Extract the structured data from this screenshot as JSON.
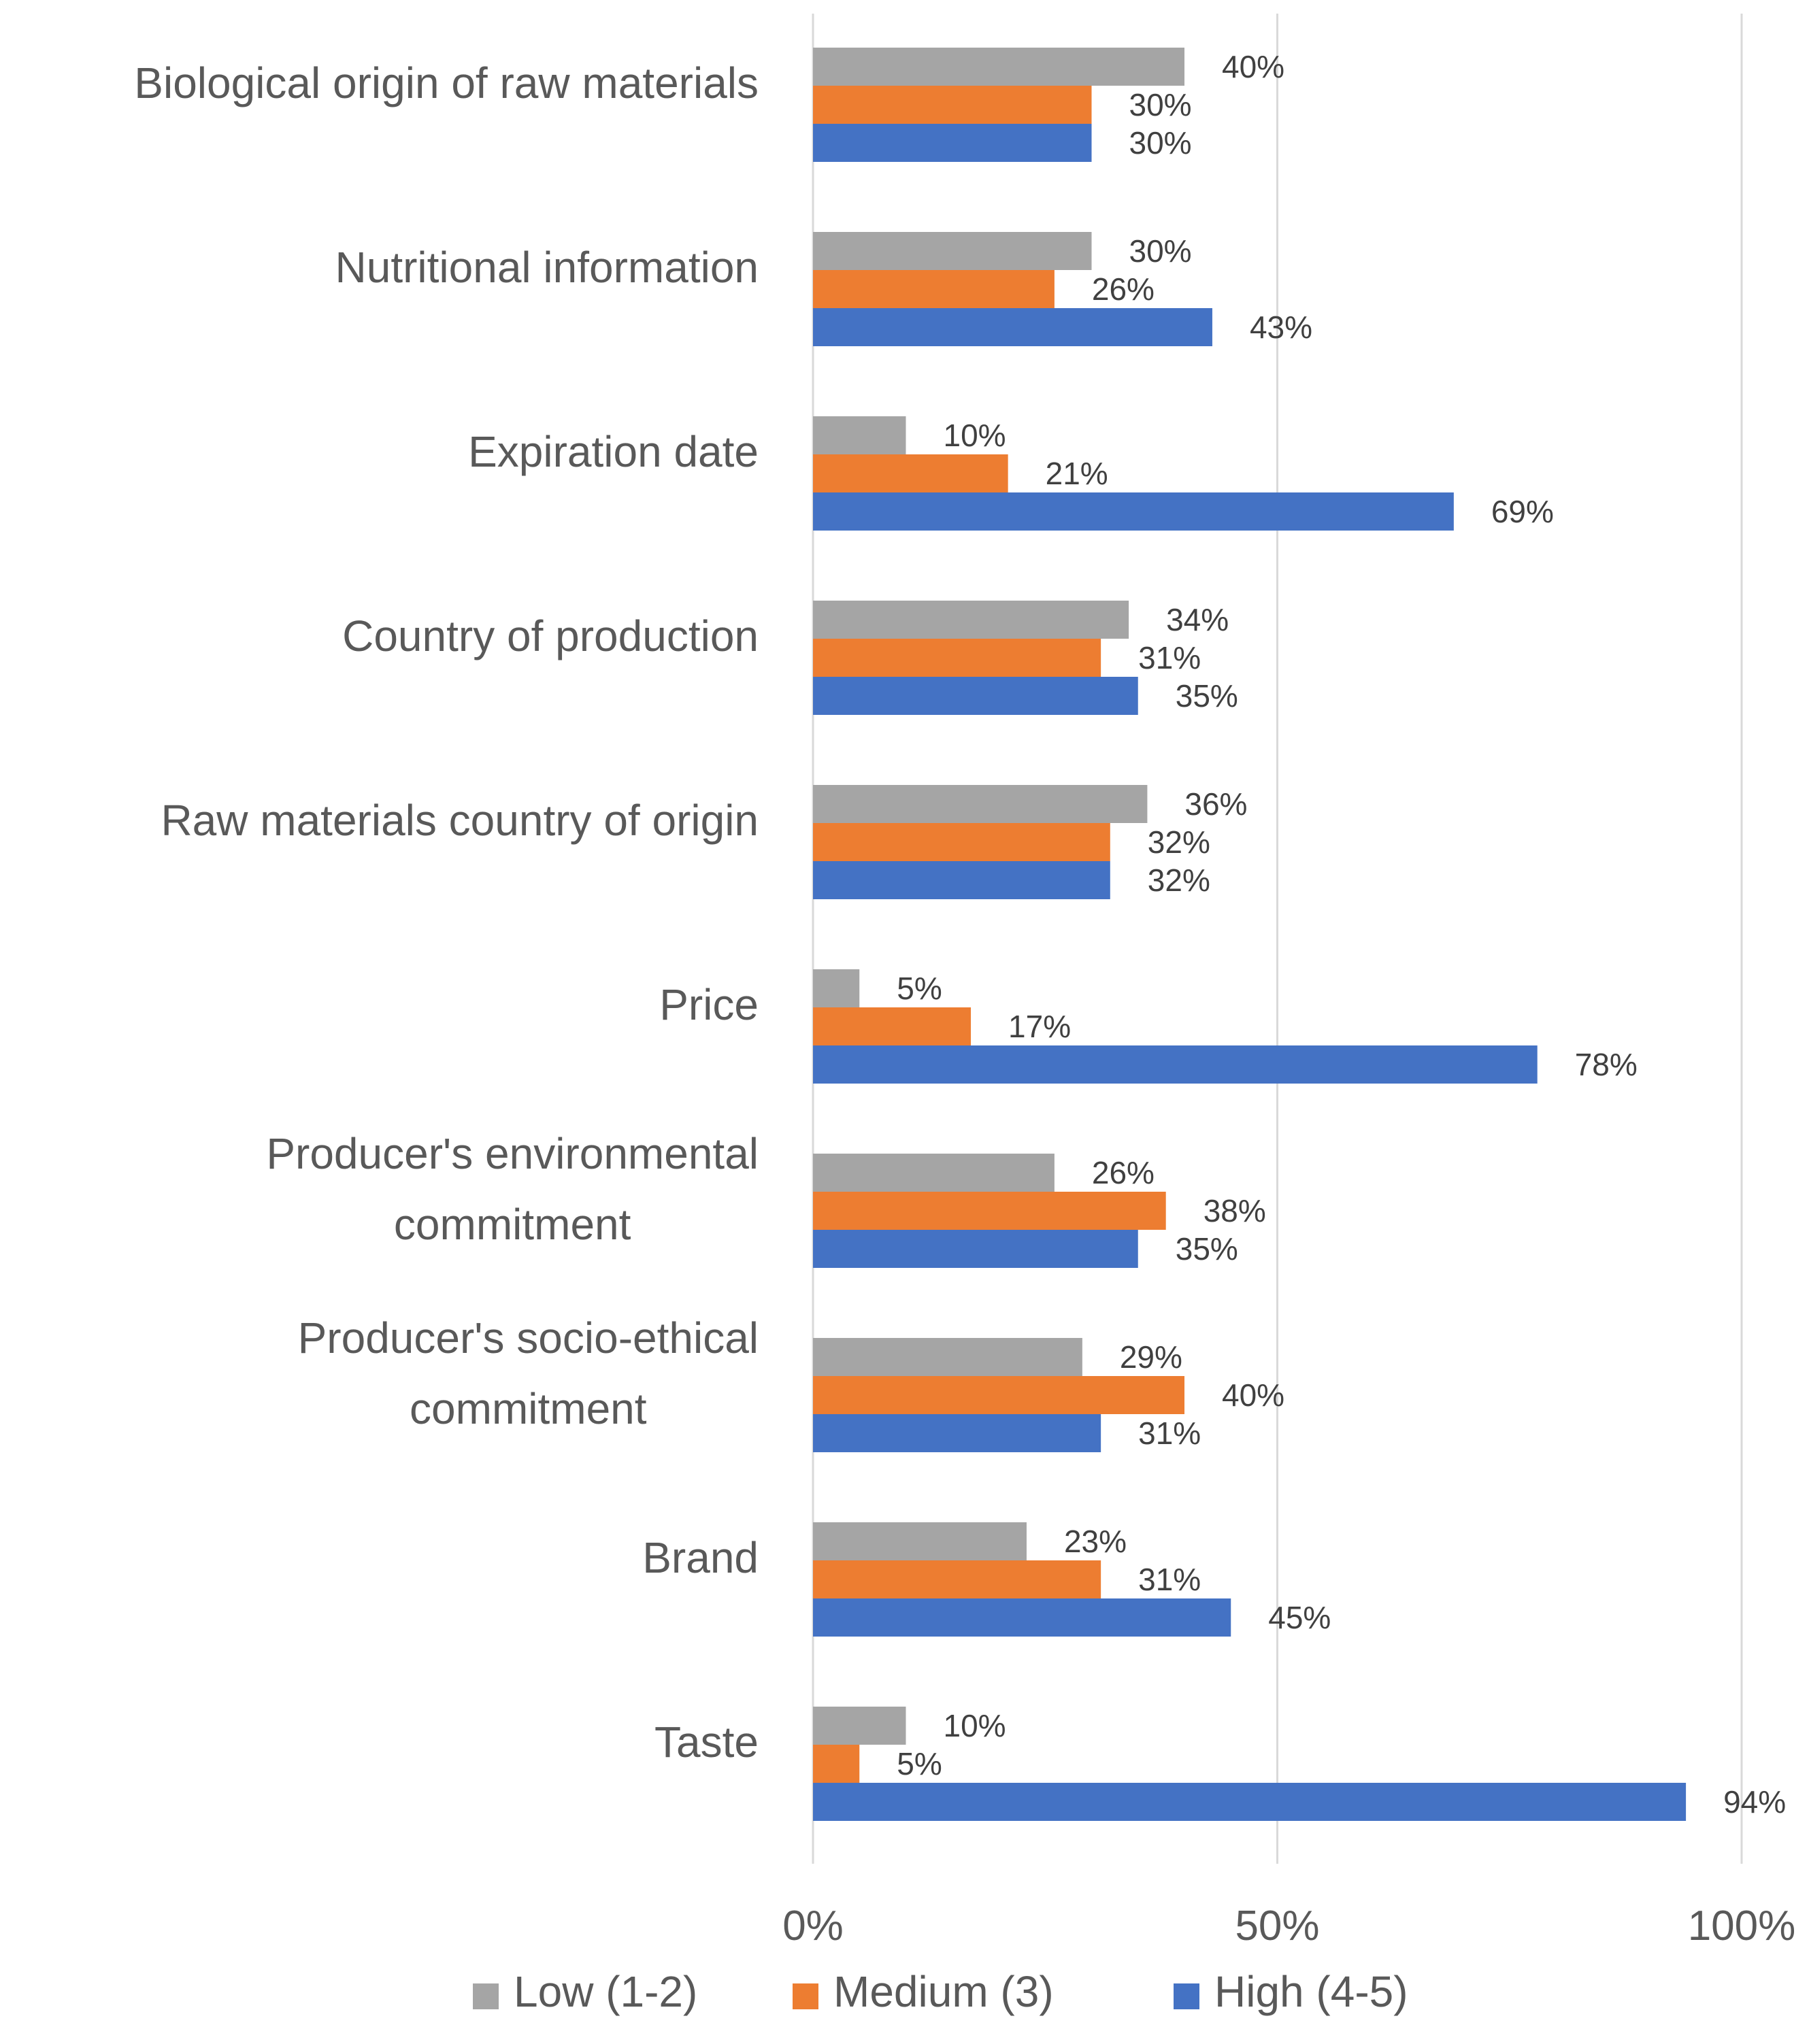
{
  "chart_data": {
    "type": "bar",
    "orientation": "horizontal",
    "categories": [
      "Biological origin of raw materials",
      "Nutritional information",
      "Expiration date",
      "Country of production",
      "Raw materials country of origin",
      "Price",
      "Producer's environmental commitment",
      "Producer's socio-ethical commitment",
      "Brand",
      "Taste"
    ],
    "category_lines": [
      [
        "Biological origin of raw materials"
      ],
      [
        "Nutritional information"
      ],
      [
        "Expiration date"
      ],
      [
        "Country of production"
      ],
      [
        "Raw materials country of origin"
      ],
      [
        "Price"
      ],
      [
        "Producer's environmental",
        "commitment"
      ],
      [
        "Producer's socio-ethical",
        "commitment"
      ],
      [
        "Brand"
      ],
      [
        "Taste"
      ]
    ],
    "series": [
      {
        "name": "Low (1-2)",
        "color": "#a5a5a5",
        "values": [
          40,
          30,
          10,
          34,
          36,
          5,
          26,
          29,
          23,
          10
        ]
      },
      {
        "name": "Medium (3)",
        "color": "#ed7d31",
        "values": [
          30,
          26,
          21,
          31,
          32,
          17,
          38,
          40,
          31,
          5
        ]
      },
      {
        "name": "High (4-5)",
        "color": "#4472c4",
        "values": [
          30,
          43,
          69,
          35,
          32,
          78,
          35,
          31,
          45,
          94
        ]
      }
    ],
    "xlim": [
      0,
      100
    ],
    "xticks": [
      0,
      50,
      100
    ],
    "xtick_labels": [
      "0%",
      "50%",
      "100%"
    ],
    "value_suffix": "%",
    "grid": true,
    "legend_position": "bottom",
    "title": "",
    "xlabel": "",
    "ylabel": ""
  }
}
